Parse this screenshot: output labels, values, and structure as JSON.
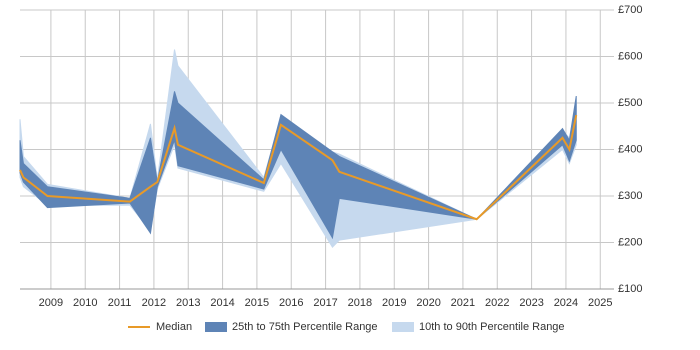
{
  "chart_data": {
    "type": "line",
    "x": [
      2008.1,
      2008.2,
      2008.9,
      2011.3,
      2011.9,
      2012.1,
      2012.6,
      2012.7,
      2015.2,
      2015.7,
      2017.2,
      2017.4,
      2021.4,
      2023.9,
      2024.1,
      2024.3
    ],
    "series": [
      {
        "name": "Median",
        "color": "#e89a28",
        "values": [
          356,
          340,
          300,
          288,
          320,
          330,
          446,
          410,
          328,
          453,
          377,
          352,
          250,
          425,
          400,
          474
        ]
      }
    ],
    "bands": [
      {
        "name": "10th to 90th Percentile Range",
        "color": "#c6d9ee",
        "lower": [
          340,
          320,
          280,
          280,
          225,
          315,
          410,
          360,
          310,
          370,
          190,
          205,
          250,
          400,
          370,
          410
        ],
        "upper": [
          465,
          385,
          325,
          295,
          455,
          335,
          615,
          580,
          340,
          470,
          395,
          390,
          250,
          440,
          425,
          500
        ]
      },
      {
        "name": "25th to 75th Percentile Range",
        "color": "#5e84b6",
        "lower": [
          350,
          330,
          275,
          285,
          220,
          320,
          420,
          365,
          315,
          400,
          210,
          295,
          250,
          410,
          375,
          420
        ],
        "upper": [
          420,
          370,
          320,
          295,
          425,
          330,
          525,
          500,
          335,
          475,
          395,
          385,
          250,
          445,
          420,
          515
        ]
      }
    ],
    "xlim": [
      2008.1,
      2025.4
    ],
    "xticks": [
      2009,
      2010,
      2011,
      2012,
      2013,
      2014,
      2015,
      2016,
      2017,
      2018,
      2019,
      2020,
      2021,
      2022,
      2023,
      2024,
      2025
    ],
    "ylim": [
      100,
      700
    ],
    "yticks": [
      {
        "value": 100,
        "label": "£100"
      },
      {
        "value": 200,
        "label": "£200"
      },
      {
        "value": 300,
        "label": "£300"
      },
      {
        "value": 400,
        "label": "£400"
      },
      {
        "value": 500,
        "label": "£500"
      },
      {
        "value": 600,
        "label": "£600"
      },
      {
        "value": 700,
        "label": "£700"
      }
    ],
    "grid": true
  }
}
